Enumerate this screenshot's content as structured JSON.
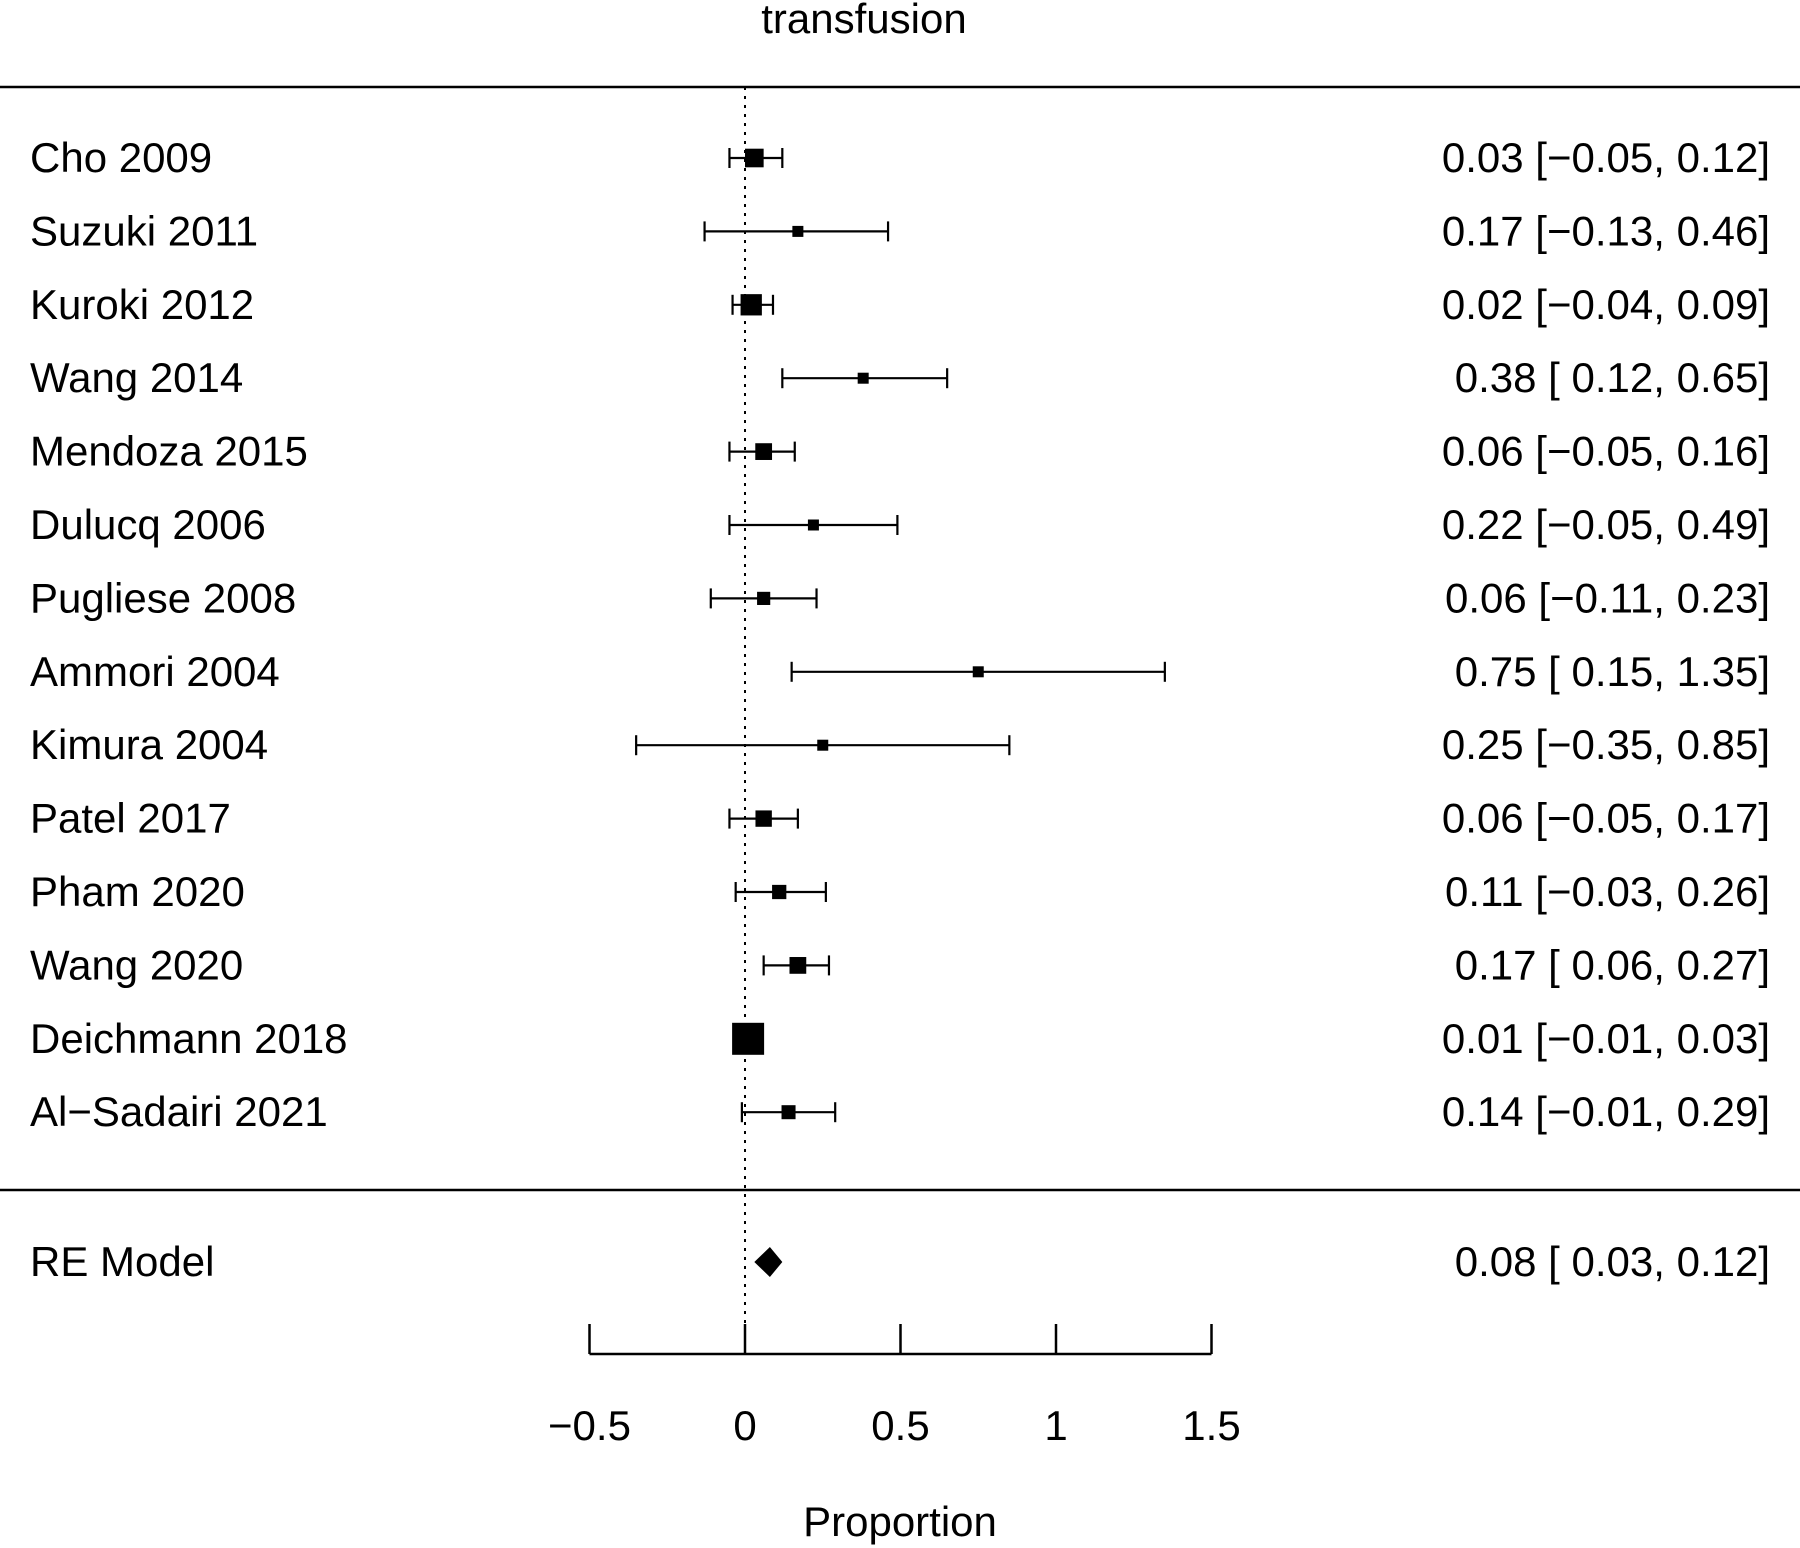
{
  "chart_data": {
    "type": "forest",
    "title": "transfusion",
    "xlabel": "Proportion",
    "xlim": [
      -0.5,
      1.5
    ],
    "xticks": [
      -0.5,
      0,
      0.5,
      1,
      1.5
    ],
    "xtick_labels": [
      "−0.5",
      "0",
      "0.5",
      "1",
      "1.5"
    ],
    "reference_line": 0,
    "studies": [
      {
        "label": "Cho 2009",
        "est": 0.03,
        "lo": -0.05,
        "hi": 0.12,
        "ci_text": "0.03 [−0.05, 0.12]"
      },
      {
        "label": "Suzuki 2011",
        "est": 0.17,
        "lo": -0.13,
        "hi": 0.46,
        "ci_text": "0.17 [−0.13, 0.46]"
      },
      {
        "label": "Kuroki 2012",
        "est": 0.02,
        "lo": -0.04,
        "hi": 0.09,
        "ci_text": "0.02 [−0.04, 0.09]"
      },
      {
        "label": "Wang 2014",
        "est": 0.38,
        "lo": 0.12,
        "hi": 0.65,
        "ci_text": "0.38 [ 0.12, 0.65]"
      },
      {
        "label": "Mendoza 2015",
        "est": 0.06,
        "lo": -0.05,
        "hi": 0.16,
        "ci_text": "0.06 [−0.05, 0.16]"
      },
      {
        "label": "Dulucq 2006",
        "est": 0.22,
        "lo": -0.05,
        "hi": 0.49,
        "ci_text": "0.22 [−0.05, 0.49]"
      },
      {
        "label": "Pugliese 2008",
        "est": 0.06,
        "lo": -0.11,
        "hi": 0.23,
        "ci_text": "0.06 [−0.11, 0.23]"
      },
      {
        "label": "Ammori 2004",
        "est": 0.75,
        "lo": 0.15,
        "hi": 1.35,
        "ci_text": "0.75 [ 0.15, 1.35]"
      },
      {
        "label": "Kimura 2004",
        "est": 0.25,
        "lo": -0.35,
        "hi": 0.85,
        "ci_text": "0.25 [−0.35, 0.85]"
      },
      {
        "label": "Patel 2017",
        "est": 0.06,
        "lo": -0.05,
        "hi": 0.17,
        "ci_text": "0.06 [−0.05, 0.17]"
      },
      {
        "label": "Pham 2020",
        "est": 0.11,
        "lo": -0.03,
        "hi": 0.26,
        "ci_text": "0.11 [−0.03, 0.26]"
      },
      {
        "label": "Wang 2020",
        "est": 0.17,
        "lo": 0.06,
        "hi": 0.27,
        "ci_text": "0.17 [ 0.06, 0.27]"
      },
      {
        "label": "Deichmann 2018",
        "est": 0.01,
        "lo": -0.01,
        "hi": 0.03,
        "ci_text": "0.01 [−0.01, 0.03]"
      },
      {
        "label": "Al−Sadairi 2021",
        "est": 0.14,
        "lo": -0.01,
        "hi": 0.29,
        "ci_text": "0.14 [−0.01, 0.29]"
      }
    ],
    "summary": {
      "label": "RE Model",
      "est": 0.08,
      "lo": 0.03,
      "hi": 0.12,
      "ci_text": "0.08 [ 0.03, 0.12]"
    }
  }
}
